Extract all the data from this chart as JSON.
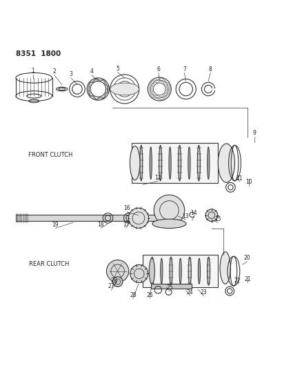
{
  "title_code": "8351  1800",
  "bg_color": "#ffffff",
  "line_color": "#333333",
  "front_clutch_label": "FRONT CLUTCH",
  "rear_clutch_label": "REAR CLUTCH"
}
